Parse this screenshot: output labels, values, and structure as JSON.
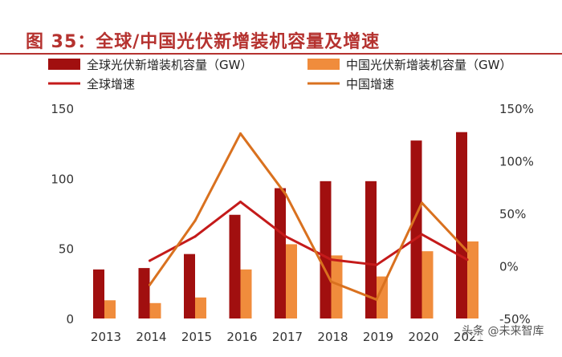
{
  "title": "图 35：全球/中国光伏新增装机容量及增速",
  "watermark": "头条 @未来智库",
  "chart_data": {
    "type": "bar",
    "categories": [
      "2013",
      "2014",
      "2015",
      "2016",
      "2017",
      "2018",
      "2019",
      "2020",
      "2021"
    ],
    "series": [
      {
        "name": "全球光伏新增装机容量（GW）",
        "kind": "bar",
        "axis": "left",
        "color": "#a10f0f",
        "values": [
          35,
          36,
          46,
          74,
          93,
          98,
          98,
          127,
          133
        ]
      },
      {
        "name": "中国光伏新增装机容量（GW）",
        "kind": "bar",
        "axis": "left",
        "color": "#f08c3c",
        "values": [
          13,
          11,
          15,
          35,
          53,
          45,
          30,
          48,
          55
        ]
      },
      {
        "name": "全球增速",
        "kind": "line",
        "axis": "right",
        "color": "#c41a1a",
        "values": [
          null,
          5,
          28,
          61,
          28,
          6,
          1,
          30,
          6
        ]
      },
      {
        "name": "中国增速",
        "kind": "line",
        "axis": "right",
        "color": "#d9711f",
        "values": [
          null,
          -18,
          43,
          126,
          68,
          -15,
          -32,
          60,
          14
        ]
      }
    ],
    "y_left": {
      "range": [
        0,
        150
      ],
      "ticks": [
        0,
        50,
        100,
        150
      ],
      "tick_labels": [
        "0",
        "50",
        "100",
        "150"
      ]
    },
    "y_right": {
      "range": [
        -50,
        150
      ],
      "ticks": [
        -50,
        0,
        50,
        100,
        150
      ],
      "tick_labels": [
        "-50%",
        "0%",
        "50%",
        "100%",
        "150%"
      ]
    },
    "legend": [
      {
        "label": "全球光伏新增装机容量（GW）",
        "marker": "box",
        "color": "#a10f0f"
      },
      {
        "label": "中国光伏新增装机容量（GW）",
        "marker": "box",
        "color": "#f08c3c"
      },
      {
        "label": "全球增速",
        "marker": "line",
        "color": "#c41a1a"
      },
      {
        "label": "中国增速",
        "marker": "line",
        "color": "#d9711f"
      }
    ],
    "legend_position": "top",
    "grid": false
  }
}
